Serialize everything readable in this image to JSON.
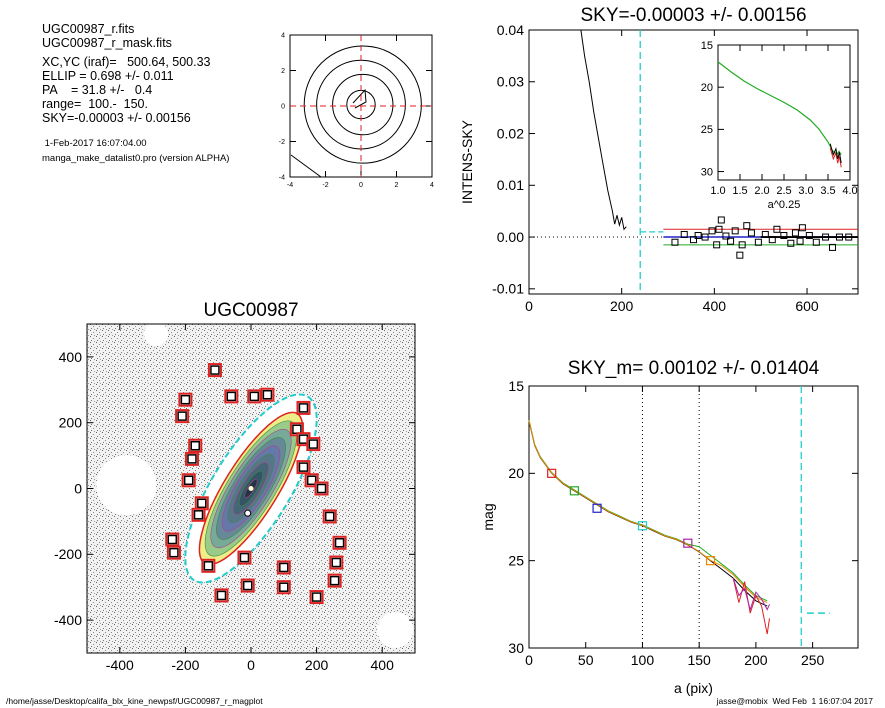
{
  "info": {
    "file1": "UGC00987_r.fits",
    "file2": "UGC00987_r_mask.fits",
    "xcyc": "XC,YC (iraf)=   500.64, 500.33",
    "ellip": "ELLIP = 0.698 +/- 0.011",
    "pa": "PA    = 31.8 +/-   0.4",
    "range": "range=  100.-  150.",
    "sky": "SKY=-0.00003 +/- 0.00156",
    "date": " 1-Feb-2017 16:07:04.00",
    "program": "manga_make_datalist0.pro (version ALPHA)"
  },
  "footer": {
    "path": "/home/jasse/Desktop/califa_blx_kine_newpsf/UGC00987_r_magplot",
    "user": "jasse@mobix  Wed Feb  1 16:07:04 2017"
  },
  "colors": {
    "cyan": "#22cccc",
    "red": "#dd2222",
    "green": "#22aa22",
    "blue": "#2222cc",
    "magenta": "#aa22aa",
    "orange": "#ee8800"
  },
  "chart_data": [
    {
      "id": "contour",
      "type": "contour",
      "title": "",
      "xlim": [
        -4,
        4
      ],
      "ylim": [
        -4,
        4
      ],
      "xticks": [
        -4,
        -2,
        0,
        2,
        4
      ],
      "yticks": [
        -4,
        -2,
        0,
        2,
        4
      ],
      "contour_radii": [
        0.8,
        1.7,
        2.5,
        3.3
      ]
    },
    {
      "id": "sky",
      "type": "line",
      "title": "SKY=-0.00003 +/- 0.00156",
      "xlabel": "",
      "ylabel": "INTENS-SKY",
      "xlim": [
        0,
        710
      ],
      "ylim": [
        -0.011,
        0.04
      ],
      "xticks": [
        0,
        200,
        400,
        600
      ],
      "yticks": [
        -0.01,
        0.0,
        0.01,
        0.02,
        0.03,
        0.04
      ],
      "ytick_labels": [
        "-0.01",
        "0.00",
        "0.01",
        "0.02",
        "0.03",
        "0.04"
      ],
      "profile_x": [
        112,
        120,
        130,
        140,
        150,
        160,
        170,
        180,
        185,
        190,
        195,
        200,
        205,
        210
      ],
      "profile_y": [
        0.04,
        0.035,
        0.03,
        0.024,
        0.019,
        0.014,
        0.009,
        0.005,
        0.0025,
        0.0042,
        0.0023,
        0.0038,
        0.0015,
        0.002
      ],
      "points_x": [
        315,
        335,
        355,
        365,
        380,
        395,
        405,
        410,
        415,
        425,
        435,
        445,
        455,
        460,
        470,
        480,
        495,
        510,
        525,
        535,
        550,
        565,
        575,
        585,
        590,
        605,
        620,
        640,
        655,
        670,
        690
      ],
      "points_y": [
        -0.001,
        0.0005,
        -0.0005,
        0.0003,
        0.0,
        0.0012,
        -0.0015,
        0.0015,
        0.0033,
        0.0002,
        -0.0008,
        0.0012,
        -0.0035,
        -0.0015,
        0.0022,
        0.0008,
        -0.001,
        0.0005,
        -0.0005,
        0.0015,
        0.0003,
        -0.0012,
        0.0008,
        -0.0008,
        0.0018,
        0.0003,
        -0.001,
        0.0,
        -0.002,
        0.0,
        0.0
      ],
      "vline_x": 240,
      "sky_red": 0.0015,
      "sky_green": -0.0015,
      "sky_blue": 0.0,
      "inset": {
        "xlabel": "a^0.25",
        "xlim": [
          1.0,
          4.0
        ],
        "ylim": [
          15,
          31
        ],
        "xticks": [
          1.0,
          1.5,
          2.0,
          2.5,
          3.0,
          3.5,
          4.0
        ],
        "xtick_labels": [
          "1.0",
          "1.5",
          "2.0",
          "2.5",
          "3.0",
          "3.5",
          "4.0"
        ],
        "yticks": [
          15,
          20,
          25,
          30
        ],
        "x": [
          1.0,
          1.3,
          1.6,
          1.9,
          2.2,
          2.5,
          2.8,
          3.1,
          3.3,
          3.5,
          3.6,
          3.7,
          3.75,
          3.8
        ],
        "y": [
          17.0,
          18.2,
          19.3,
          20.2,
          21.0,
          21.8,
          22.7,
          23.9,
          25.0,
          26.5,
          27.5,
          28.0,
          27.6,
          28.0
        ]
      }
    },
    {
      "id": "image",
      "type": "image",
      "title": "UGC00987",
      "xlim": [
        -500,
        500
      ],
      "ylim": [
        -500,
        500
      ],
      "xticks": [
        -400,
        -200,
        0,
        200,
        400
      ],
      "yticks": [
        -400,
        -200,
        0,
        200,
        400
      ],
      "mask_boxes": [
        [
          -110,
          360
        ],
        [
          -200,
          270
        ],
        [
          -60,
          280
        ],
        [
          10,
          280
        ],
        [
          50,
          285
        ],
        [
          -210,
          220
        ],
        [
          -170,
          130
        ],
        [
          -180,
          90
        ],
        [
          -190,
          25
        ],
        [
          -150,
          -45
        ],
        [
          -160,
          -80
        ],
        [
          160,
          245
        ],
        [
          140,
          180
        ],
        [
          160,
          150
        ],
        [
          190,
          135
        ],
        [
          160,
          65
        ],
        [
          185,
          25
        ],
        [
          215,
          0
        ],
        [
          240,
          -85
        ],
        [
          270,
          -165
        ],
        [
          260,
          -225
        ],
        [
          255,
          -280
        ],
        [
          -240,
          -155
        ],
        [
          -235,
          -195
        ],
        [
          -130,
          -235
        ],
        [
          -20,
          -210
        ],
        [
          100,
          -240
        ],
        [
          -90,
          -325
        ],
        [
          -10,
          -295
        ],
        [
          100,
          -300
        ],
        [
          200,
          -330
        ]
      ],
      "galaxy_pa": 31.8,
      "galaxy_ellip": 0.698
    },
    {
      "id": "mag",
      "type": "line",
      "title": "SKY_m=  0.00102 +/- 0.01404",
      "xlabel": "a (pix)",
      "ylabel": "mag",
      "xlim": [
        0,
        290
      ],
      "ylim": [
        15,
        30
      ],
      "xticks": [
        0,
        50,
        100,
        150,
        200,
        250
      ],
      "yticks": [
        15,
        20,
        25,
        30
      ],
      "x": [
        0,
        5,
        10,
        20,
        30,
        40,
        50,
        60,
        70,
        80,
        90,
        100,
        110,
        120,
        130,
        140,
        150,
        160,
        170,
        180,
        190,
        200,
        210
      ],
      "y": [
        17.0,
        18.4,
        19.1,
        20.0,
        20.6,
        21.0,
        21.4,
        21.8,
        22.2,
        22.5,
        22.8,
        23.0,
        23.3,
        23.6,
        23.8,
        24.1,
        24.5,
        25.0,
        25.5,
        26.0,
        26.7,
        27.3,
        27.6
      ],
      "markers": [
        {
          "x": 20,
          "y": 20.0,
          "color": "#dd2222"
        },
        {
          "x": 40,
          "y": 21.0,
          "color": "#22aa22"
        },
        {
          "x": 60,
          "y": 22.0,
          "color": "#2222cc"
        },
        {
          "x": 100,
          "y": 23.0,
          "color": "#22cccc"
        },
        {
          "x": 140,
          "y": 24.0,
          "color": "#aa22aa"
        },
        {
          "x": 160,
          "y": 25.0,
          "color": "#ee8800"
        }
      ],
      "vlines_dotted": [
        100,
        150
      ],
      "vline_cyan": 240,
      "sky_level": 28.0
    }
  ]
}
